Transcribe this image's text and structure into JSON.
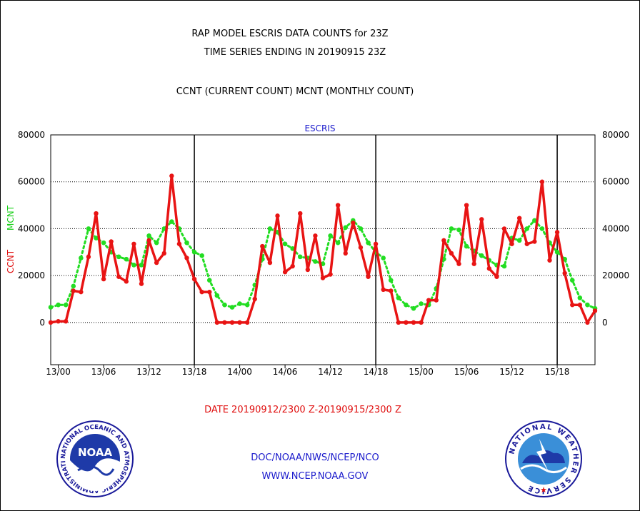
{
  "header": {
    "title_line1": "RAP MODEL ESCRIS DATA COUNTS for 23Z",
    "title_line2": "TIME SERIES ENDING IN 20190915 23Z",
    "subtitle": "CCNT (CURRENT COUNT) MCNT (MONTHLY COUNT)"
  },
  "chart_label": "ESCRIS",
  "footer": {
    "date_range": "DATE 20190912/2300 Z-20190915/2300 Z",
    "org_line": "DOC/NOAA/NWS/NCEP/NCO",
    "url_line": "WWW.NCEP.NOAA.GOV"
  },
  "logos": {
    "noaa_text": "NOAA",
    "noaa_ring_text": "NATIONAL OCEANIC AND ATMOSPHERIC ADMINISTRATION • U.S. DEPARTMENT OF COMMERCE •",
    "nws_ring_text": "NATIONAL WEATHER SERVICE"
  },
  "colors": {
    "ccnt": "#e81414",
    "mcnt": "#22dd22",
    "title": "#000000",
    "blue_text": "#1a1acc",
    "date_text": "#e01010"
  },
  "chart_data": {
    "type": "line",
    "title": "RAP MODEL ESCRIS DATA COUNTS for 23Z",
    "ylabel_left": [
      "CCNT",
      "MCNT"
    ],
    "ylim": [
      -18000,
      80000
    ],
    "yticks": [
      0,
      20000,
      40000,
      60000,
      80000
    ],
    "yticklabels": [
      "0",
      "20000",
      "40000",
      "60000",
      "80000"
    ],
    "xticklabels": [
      "13/00",
      "13/06",
      "13/12",
      "13/18",
      "14/00",
      "14/06",
      "14/12",
      "14/18",
      "15/00",
      "15/06",
      "15/12",
      "15/18"
    ],
    "xtick_hours": [
      1,
      7,
      13,
      19,
      25,
      31,
      37,
      43,
      49,
      55,
      61,
      67
    ],
    "day_boundaries_hours": [
      19,
      43,
      67
    ],
    "x_range_hours": [
      0,
      72
    ],
    "grid": "horizontal dotted",
    "series": [
      {
        "name": "CCNT",
        "color": "#e81414",
        "values": [
          0,
          500,
          500,
          13500,
          13000,
          28000,
          46500,
          18500,
          34500,
          19500,
          17500,
          33500,
          16500,
          35000,
          25500,
          29500,
          62500,
          33500,
          27500,
          18500,
          13000,
          13000,
          0,
          0,
          0,
          0,
          0,
          10000,
          32500,
          25500,
          45500,
          21500,
          24000,
          46500,
          22500,
          37000,
          19000,
          20500,
          50000,
          29500,
          42500,
          32000,
          19500,
          33500,
          14000,
          13500,
          0,
          0,
          0,
          0,
          9500,
          9500,
          35000,
          29500,
          25000,
          50000,
          25000,
          44000,
          23000,
          19500,
          40000,
          33500,
          44500,
          33500,
          34500,
          60000,
          26500,
          38500,
          21000,
          7500,
          7500,
          0,
          5000
        ]
      },
      {
        "name": "MCNT",
        "color": "#22dd22",
        "values": [
          6500,
          7500,
          7500,
          15500,
          27500,
          40000,
          36000,
          34000,
          30000,
          28000,
          27000,
          24500,
          24500,
          37000,
          34000,
          40000,
          43000,
          40000,
          34000,
          30000,
          28500,
          18000,
          11500,
          7500,
          6500,
          8000,
          7500,
          16000,
          27000,
          40000,
          38500,
          33500,
          31500,
          28000,
          27500,
          26000,
          25000,
          37000,
          34000,
          40500,
          43500,
          40000,
          34000,
          30000,
          27500,
          18000,
          10500,
          7500,
          6000,
          8000,
          7500,
          14500,
          27000,
          40000,
          39500,
          32500,
          30500,
          28500,
          26500,
          24500,
          24000,
          36000,
          35000,
          40000,
          43500,
          40000,
          34000,
          30000,
          27000,
          18000,
          10500,
          7500,
          6000
        ]
      }
    ]
  }
}
